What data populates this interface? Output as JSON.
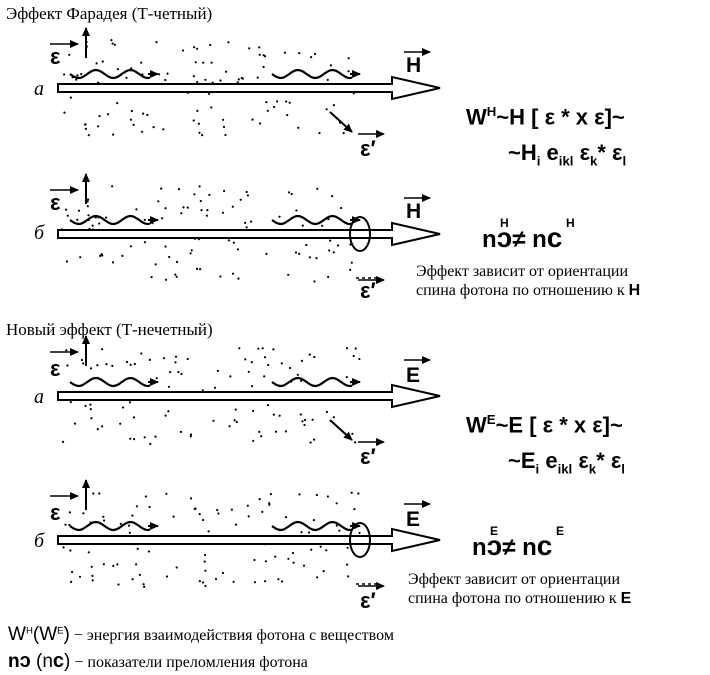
{
  "titles": {
    "faraday": "Эффект Фарадея (Т-четный)",
    "new_effect": "Новый эффект (Т-нечетный)"
  },
  "panel_labels": {
    "a": "а",
    "b": "б"
  },
  "symbols": {
    "epsilon": "ε",
    "epsilon_prime": "ε′",
    "H": "H",
    "E": "E",
    "W": "W",
    "n": "n"
  },
  "formulas": {
    "faraday_1_main": "W",
    "faraday_1_sup": "H",
    "faraday_1_rest": "~H [ ε * x ε]~",
    "faraday_2": "~H",
    "faraday_2_i": "i",
    "faraday_2_e": " e",
    "faraday_2_ikl": "ikl",
    "faraday_2_eps": " ε",
    "faraday_2_k": "k",
    "faraday_2_star": "* ε",
    "faraday_2_l": "l",
    "new_1_main": "W",
    "new_1_sup": "E",
    "new_1_rest": "~E [ ε * x ε]~",
    "new_2": "~E",
    "neq": "≠ n",
    "n": "n",
    "sup_H": "H",
    "sup_E": "E",
    "sym_left": "ɔ",
    "sym_right": "c"
  },
  "notes": {
    "faraday_line1": "Эффект зависит от ориентации",
    "faraday_line2": "спина фотона по отношению к",
    "new_line1": "Эффект зависит от ориентации",
    "new_line2": "спина фотона по отношению к"
  },
  "legend": {
    "line1_w": "W",
    "line1_wsup": "H",
    "line1_paren": "(W",
    "line1_psup": "E",
    "line1_close": ")",
    "line1_text": "  − энергия взаимодействия фотона с веществом",
    "line2_n": "n",
    "line2_sym": "ɔ",
    "line2_paren": " (n",
    "line2_psym": "c",
    "line2_close": ")",
    "line2_text": "  − показатели преломления фотона"
  }
}
